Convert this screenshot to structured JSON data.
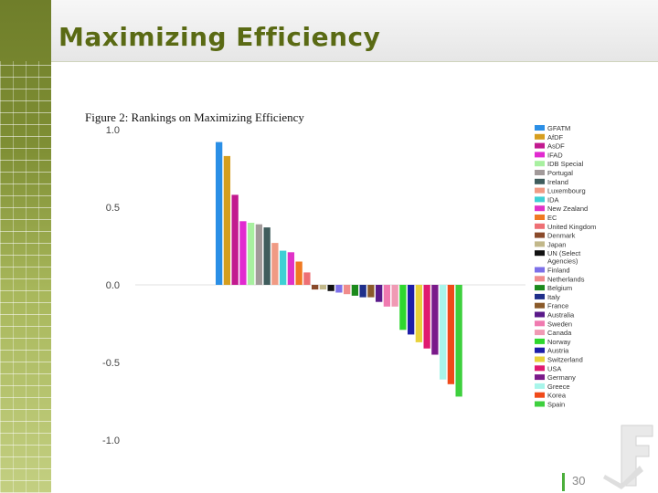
{
  "slide": {
    "title": "Maximizing Efficiency",
    "slide_number": "30"
  },
  "chart_data": {
    "type": "bar",
    "title": "Figure 2: Rankings on Maximizing Efficiency",
    "xlabel": "",
    "ylabel": "",
    "ylim": [
      -1.0,
      1.0
    ],
    "yticks": [
      "1.0",
      "0.5",
      "0.0",
      "-0.5",
      "-1.0"
    ],
    "legend_position": "right",
    "categories": [
      "GFATM",
      "AfDF",
      "AsDF",
      "IFAD",
      "IDB Special",
      "Portugal",
      "Ireland",
      "Luxembourg",
      "IDA",
      "New Zealand",
      "EC",
      "United Kingdom",
      "Denmark",
      "Japan",
      "UN (Select Agencies)",
      "Finland",
      "Netherlands",
      "Belgium",
      "Italy",
      "France",
      "Australia",
      "Sweden",
      "Canada",
      "Norway",
      "Austria",
      "Switzerland",
      "USA",
      "Germany",
      "Greece",
      "Korea",
      "Spain"
    ],
    "values": [
      0.92,
      0.83,
      0.58,
      0.41,
      0.4,
      0.39,
      0.37,
      0.27,
      0.22,
      0.21,
      0.15,
      0.08,
      -0.03,
      -0.03,
      -0.04,
      -0.05,
      -0.06,
      -0.07,
      -0.08,
      -0.08,
      -0.11,
      -0.14,
      -0.14,
      -0.29,
      -0.32,
      -0.37,
      -0.41,
      -0.45,
      -0.61,
      -0.64,
      -0.72
    ],
    "colors": [
      "#2b8fe6",
      "#d69e1f",
      "#c21a8f",
      "#e12ad0",
      "#a8f0a0",
      "#a29a9a",
      "#3f5c5c",
      "#f09a84",
      "#3fd0d4",
      "#e032c8",
      "#f07a22",
      "#ee6f74",
      "#8a4a2a",
      "#c2b88a",
      "#111111",
      "#7d70e8",
      "#f08c8c",
      "#1c8a1c",
      "#1f2f8a",
      "#8a5a2a",
      "#5a1a8a",
      "#f07ab0",
      "#f09ab4",
      "#2ed82e",
      "#1e1ea8",
      "#e8d23a",
      "#e01a70",
      "#7a1a8a",
      "#a8f5ea",
      "#f04a1a",
      "#3ed03e"
    ]
  }
}
